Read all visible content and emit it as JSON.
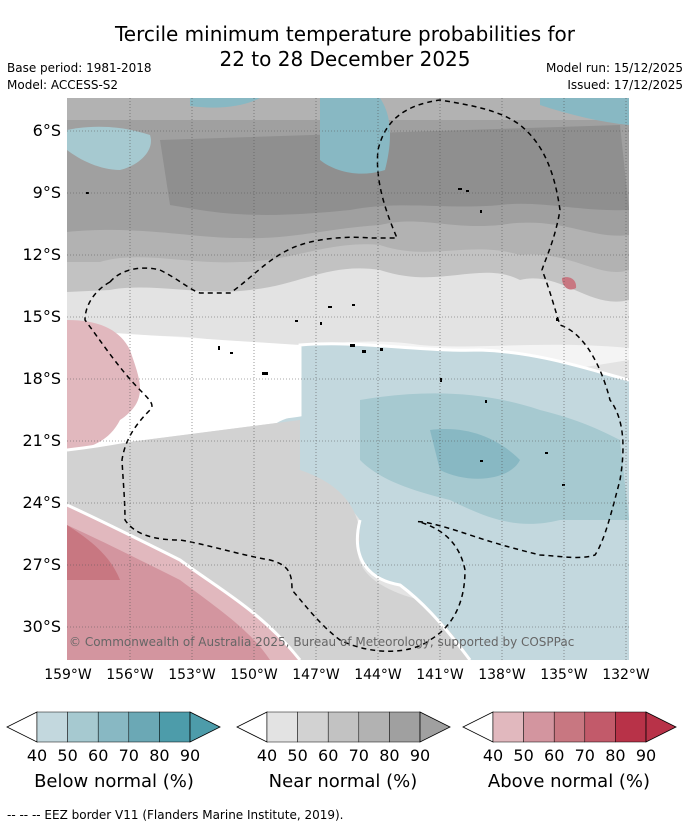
{
  "title_line1": "Tercile minimum temperature probabilities for",
  "title_line2": "22 to 28 December 2025",
  "meta": {
    "base_period": "Base period: 1981-2018",
    "model": "Model: ACCESS-S2",
    "model_run": "Model run: 15/12/2025",
    "issued": "Issued: 17/12/2025"
  },
  "map": {
    "lat_labels": [
      "6°S",
      "9°S",
      "12°S",
      "15°S",
      "18°S",
      "21°S",
      "24°S",
      "27°S",
      "30°S"
    ],
    "lon_labels": [
      "159°W",
      "156°W",
      "153°W",
      "150°W",
      "147°W",
      "144°W",
      "141°W",
      "138°W",
      "135°W",
      "132°W"
    ],
    "copyright": "© Commonwealth of Australia 2025, Bureau of Meteorology, supported by COSPPac"
  },
  "colorbars": {
    "ticks": [
      "40",
      "50",
      "60",
      "70",
      "80",
      "90"
    ],
    "below": {
      "label": "Below normal (%)",
      "colors": [
        "#c3d8de",
        "#a6c9d0",
        "#88b8c3",
        "#6ba8b5",
        "#4d9caa"
      ]
    },
    "near": {
      "label": "Near normal (%)",
      "colors": [
        "#e3e3e3",
        "#d2d2d2",
        "#c2c2c2",
        "#b2b2b2",
        "#a0a0a0"
      ]
    },
    "above": {
      "label": "Above normal (%)",
      "colors": [
        "#e1b8be",
        "#d3959f",
        "#c87781",
        "#c25a6a",
        "#b83248"
      ]
    }
  },
  "footer": "-- -- -- EEZ border V11 (Flanders Marine Institute, 2019)."
}
